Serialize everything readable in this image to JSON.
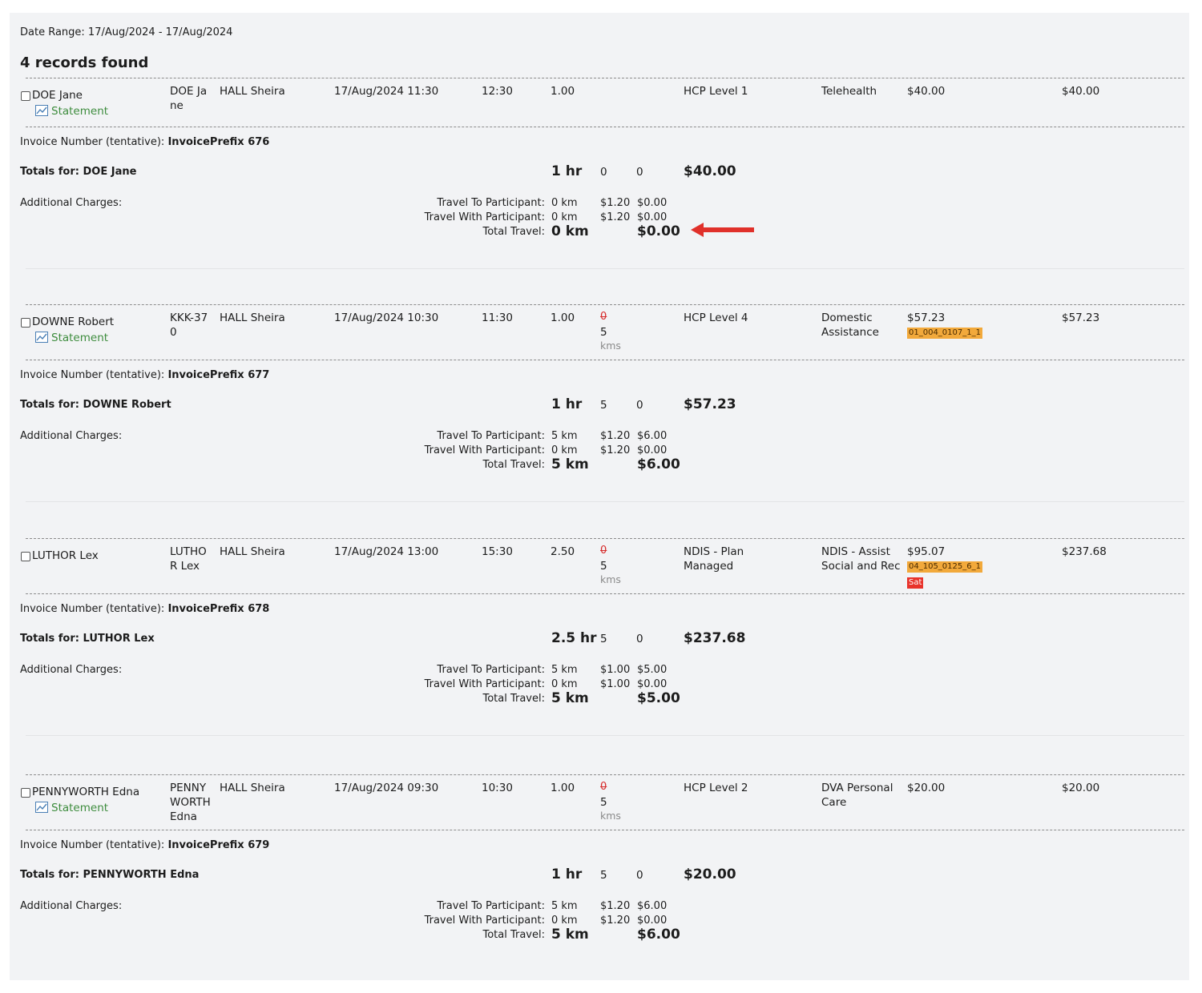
{
  "header": {
    "date_range": "Date Range: 17/Aug/2024 - 17/Aug/2024",
    "records_found": "4 records found"
  },
  "labels": {
    "statement": "Statement",
    "invoice_number_prefix": "Invoice Number (tentative):",
    "totals_prefix": "Totals for:",
    "additional_charges": "Additional Charges:",
    "travel_to": "Travel To Participant:",
    "travel_with": "Travel With Participant:",
    "total_travel": "Total Travel:",
    "kms": "kms"
  },
  "records": [
    {
      "client": "DOE Jane",
      "client_code": [
        "DOE Ja",
        "ne"
      ],
      "worker": "HALL Sheira",
      "date_start": "17/Aug/2024 11:30",
      "end": "12:30",
      "hours": "1.00",
      "km_struck": "",
      "km": "",
      "program": [
        "HCP Level 1"
      ],
      "service": [
        "Telehealth"
      ],
      "rate": "$40.00",
      "tag": "",
      "total": "$40.00",
      "invoice": "InvoicePrefix 676",
      "totals_name": "DOE Jane",
      "totals_hours": "1 hr",
      "totals_km": "0",
      "totals_other": "0",
      "totals_amount": "$40.00",
      "travel_to_km": "0 km",
      "travel_to_rate": "$1.20",
      "travel_to_amount": "$0.00",
      "travel_with_km": "0 km",
      "travel_with_rate": "$1.20",
      "travel_with_amount": "$0.00",
      "total_travel_km": "0 km",
      "total_travel_amount": "$0.00"
    },
    {
      "client": "DOWNE Robert",
      "client_code": [
        "KKK-37",
        "0"
      ],
      "worker": "HALL Sheira",
      "date_start": "17/Aug/2024 10:30",
      "end": "11:30",
      "hours": "1.00",
      "km_struck": "0",
      "km": "5",
      "program": [
        "HCP Level 4"
      ],
      "service": [
        "Domestic",
        "Assistance"
      ],
      "rate": "$57.23",
      "tag": "01_004_0107_1_1",
      "total": "$57.23",
      "invoice": "InvoicePrefix 677",
      "totals_name": "DOWNE Robert",
      "totals_hours": "1 hr",
      "totals_km": "5",
      "totals_other": "0",
      "totals_amount": "$57.23",
      "travel_to_km": "5 km",
      "travel_to_rate": "$1.20",
      "travel_to_amount": "$6.00",
      "travel_with_km": "0 km",
      "travel_with_rate": "$1.20",
      "travel_with_amount": "$0.00",
      "total_travel_km": "5 km",
      "total_travel_amount": "$6.00"
    },
    {
      "client": "LUTHOR Lex",
      "client_code": [
        "LUTHO",
        "R Lex"
      ],
      "worker": "HALL Sheira",
      "date_start": "17/Aug/2024 13:00",
      "end": "15:30",
      "hours": "2.50",
      "km_struck": "0",
      "km": "5",
      "program": [
        "NDIS - Plan",
        "Managed"
      ],
      "service": [
        "NDIS - Assist",
        "Social and Rec"
      ],
      "rate": "$95.07",
      "tag": "04_105_0125_6_1",
      "tag2": "Sat",
      "total": "$237.68",
      "invoice": "InvoicePrefix 678",
      "totals_name": "LUTHOR Lex",
      "totals_hours": "2.5 hr",
      "totals_km": "5",
      "totals_other": "0",
      "totals_amount": "$237.68",
      "travel_to_km": "5 km",
      "travel_to_rate": "$1.00",
      "travel_to_amount": "$5.00",
      "travel_with_km": "0 km",
      "travel_with_rate": "$1.00",
      "travel_with_amount": "$0.00",
      "total_travel_km": "5 km",
      "total_travel_amount": "$5.00"
    },
    {
      "client": "PENNYWORTH Edna",
      "client_code": [
        "PENNY",
        "WORTH",
        "Edna"
      ],
      "worker": "HALL Sheira",
      "date_start": "17/Aug/2024 09:30",
      "end": "10:30",
      "hours": "1.00",
      "km_struck": "0",
      "km": "5",
      "program": [
        "HCP Level 2"
      ],
      "service": [
        "DVA Personal",
        "Care"
      ],
      "rate": "$20.00",
      "tag": "",
      "total": "$20.00",
      "invoice": "InvoicePrefix 679",
      "totals_name": "PENNYWORTH Edna",
      "totals_hours": "1 hr",
      "totals_km": "5",
      "totals_other": "0",
      "totals_amount": "$20.00",
      "travel_to_km": "5 km",
      "travel_to_rate": "$1.20",
      "travel_to_amount": "$6.00",
      "travel_with_km": "0 km",
      "travel_with_rate": "$1.20",
      "travel_with_amount": "$0.00",
      "total_travel_km": "5 km",
      "total_travel_amount": "$6.00"
    }
  ],
  "annotation": {
    "arrow_color": "#e0302a"
  }
}
